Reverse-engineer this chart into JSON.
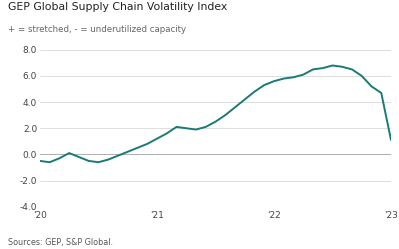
{
  "title": "GEP Global Supply Chain Volatility Index",
  "subtitle": "+ = stretched, - = underutilized capacity",
  "source": "Sources: GEP, S&P Global.",
  "line_color": "#1a7b74",
  "background_color": "#ffffff",
  "ylim": [
    -4.0,
    8.0
  ],
  "yticks": [
    -4.0,
    -2.0,
    0.0,
    2.0,
    4.0,
    6.0,
    8.0
  ],
  "x_tick_labels": [
    "'20",
    "'21",
    "'22",
    "'23"
  ],
  "x_tick_positions": [
    0,
    12,
    24,
    36
  ],
  "data": [
    -0.5,
    -0.6,
    -0.3,
    0.1,
    -0.2,
    -0.5,
    -0.6,
    -0.4,
    -0.1,
    0.2,
    0.5,
    0.8,
    1.2,
    1.6,
    2.1,
    2.0,
    1.9,
    2.1,
    2.5,
    3.0,
    3.6,
    4.2,
    4.8,
    5.3,
    5.6,
    5.8,
    5.9,
    6.1,
    6.5,
    6.6,
    6.8,
    6.7,
    6.5,
    6.0,
    5.2,
    4.7,
    1.1
  ],
  "n_months": 36
}
